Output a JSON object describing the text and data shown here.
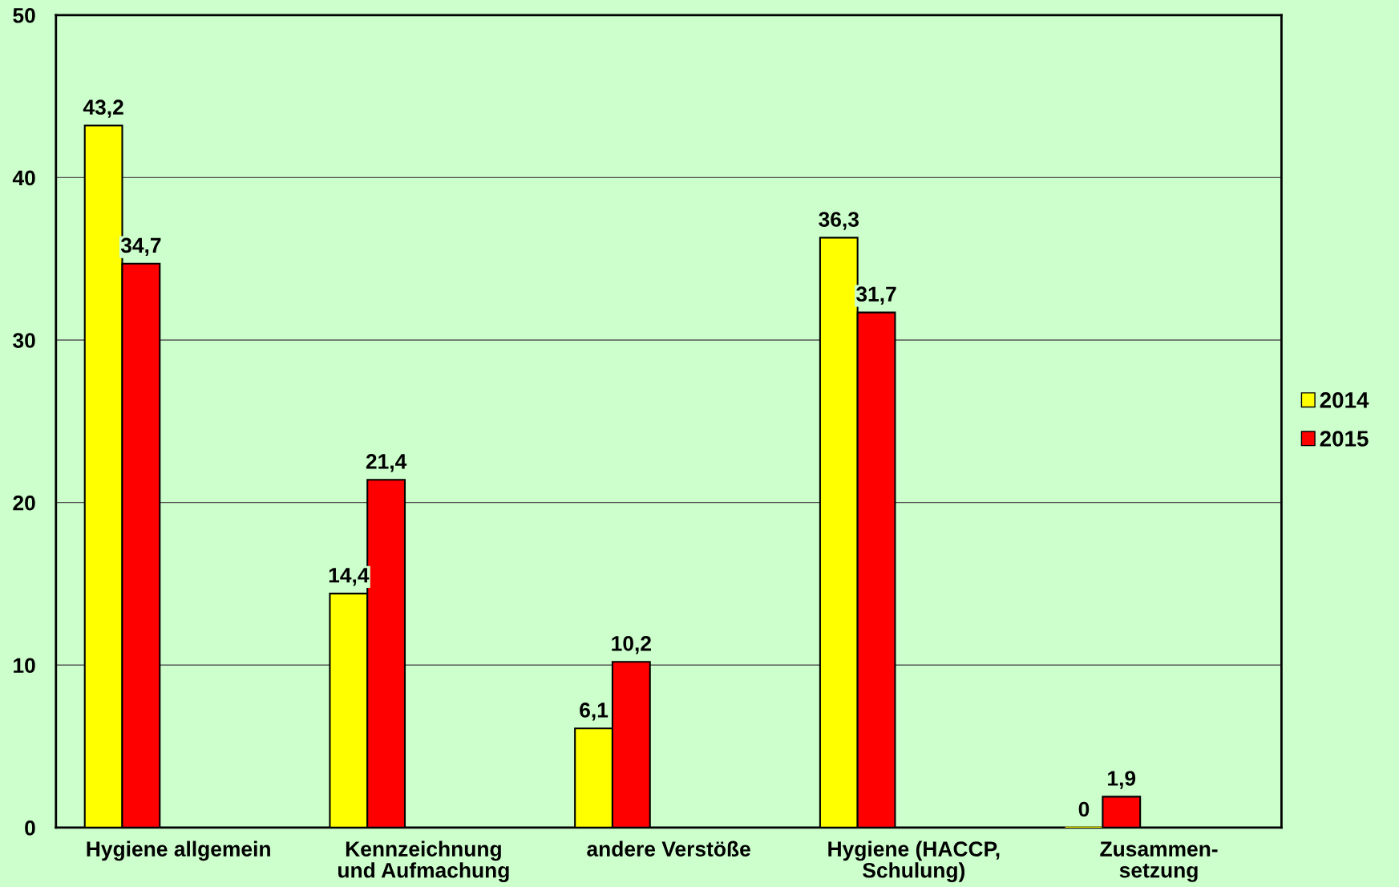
{
  "chart_data": {
    "type": "bar",
    "categories": [
      "Hygiene allgemein",
      "Kennzeichnung\nund Aufmachung",
      "andere Verstöße",
      "Hygiene (HACCP,\nSchulung)",
      "Zusammen-\nsetzung"
    ],
    "series": [
      {
        "name": "2014",
        "color": "#ffff00",
        "values": [
          43.2,
          14.4,
          6.1,
          36.3,
          0
        ],
        "value_labels": [
          "43,2",
          "14,4",
          "6,1",
          "36,3",
          "0"
        ]
      },
      {
        "name": "2015",
        "color": "#ff0000",
        "values": [
          34.7,
          21.4,
          10.2,
          31.7,
          1.9
        ],
        "value_labels": [
          "34,7",
          "21,4",
          "10,2",
          "31,7",
          "1,9"
        ]
      }
    ],
    "ylim": [
      0,
      50
    ],
    "yticks": [
      0,
      10,
      20,
      30,
      40,
      50
    ],
    "grid": "y",
    "legend": "right"
  }
}
